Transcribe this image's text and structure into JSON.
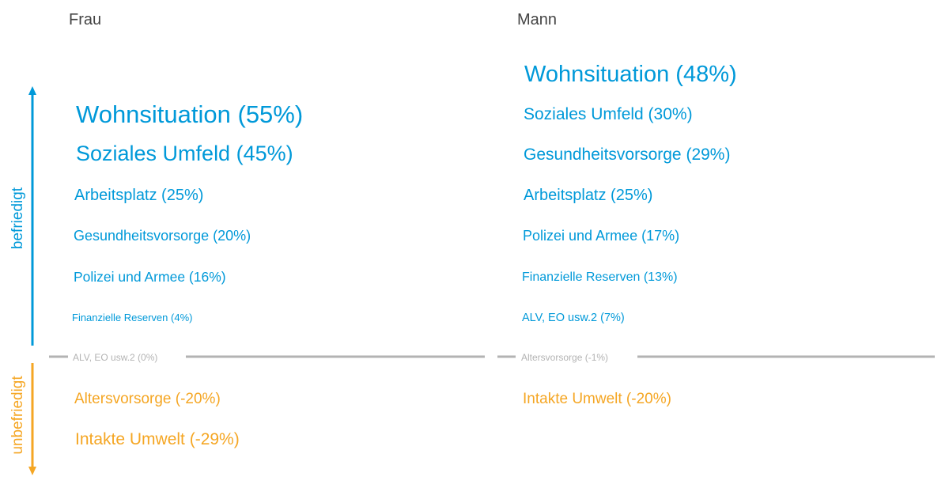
{
  "chart_data": {
    "type": "table",
    "axis": {
      "positive_label": "befriedigt",
      "negative_label": "unbefriedigt",
      "positive_color": "#0099d9",
      "negative_color": "#f5a623",
      "neutral_color": "#b3b3b3"
    },
    "columns": [
      {
        "title": "Frau",
        "items": [
          {
            "label": "Wohnsituation (55%)",
            "value": 55
          },
          {
            "label": "Soziales Umfeld (45%)",
            "value": 45
          },
          {
            "label": "Arbeitsplatz (25%)",
            "value": 25
          },
          {
            "label": "Gesundheitsvorsorge (20%)",
            "value": 20
          },
          {
            "label": "Polizei und Armee (16%)",
            "value": 16
          },
          {
            "label": "Finanzielle Reserven (4%)",
            "value": 4
          },
          {
            "label": "ALV, EO usw.2 (0%)",
            "value": 0
          },
          {
            "label": "Altersvorsorge (-20%)",
            "value": -20
          },
          {
            "label": "Intakte Umwelt (-29%)",
            "value": -29
          }
        ]
      },
      {
        "title": "Mann",
        "items": [
          {
            "label": "Wohnsituation (48%)",
            "value": 48
          },
          {
            "label": "Soziales Umfeld (30%)",
            "value": 30
          },
          {
            "label": "Gesundheitsvorsorge (29%)",
            "value": 29
          },
          {
            "label": "Arbeitsplatz (25%)",
            "value": 25
          },
          {
            "label": "Polizei und Armee (17%)",
            "value": 17
          },
          {
            "label": "Finanzielle Reserven (13%)",
            "value": 13
          },
          {
            "label": "ALV, EO usw.2 (7%)",
            "value": 7
          },
          {
            "label": "Altersvorsorge (-1%)",
            "value": -1
          },
          {
            "label": "Intakte Umwelt (-20%)",
            "value": -20
          }
        ]
      }
    ]
  }
}
